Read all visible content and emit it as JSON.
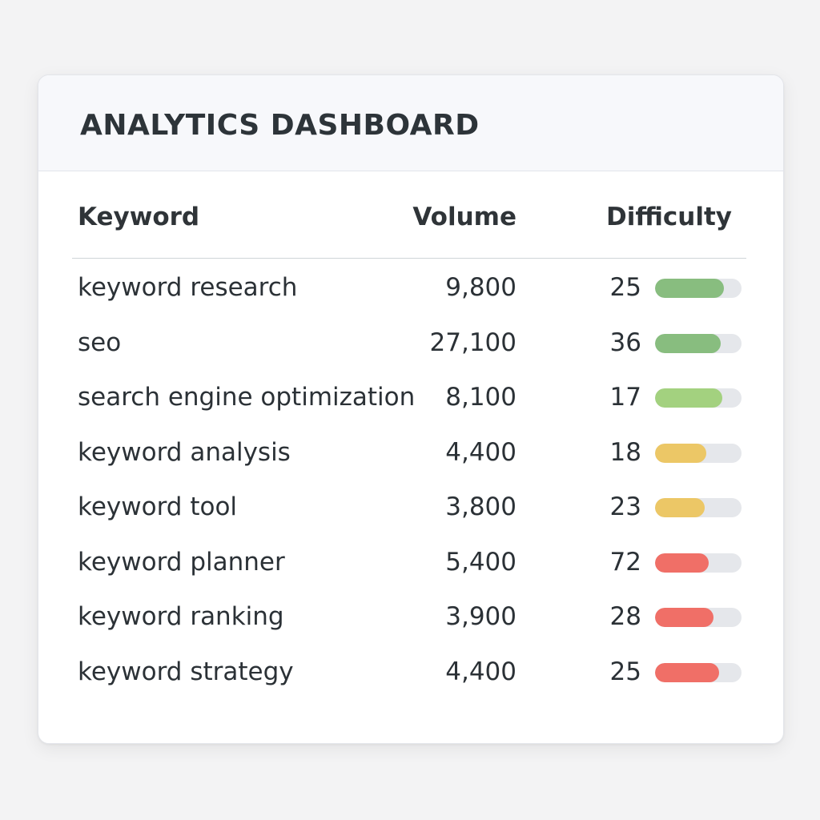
{
  "header": {
    "title": "ANALYTICS DASHBOARD"
  },
  "table": {
    "columns": {
      "keyword": "Keyword",
      "volume": "Volume",
      "difficulty": "Difficulty"
    },
    "rows": [
      {
        "keyword": "keyword research",
        "volume": "9,800",
        "difficulty": "25",
        "bar_level": 0.8,
        "bar_color": "#88bd7f"
      },
      {
        "keyword": "seo",
        "volume": "27,100",
        "difficulty": "36",
        "bar_level": 0.76,
        "bar_color": "#88bd7f"
      },
      {
        "keyword": "search engine optimization",
        "volume": "8,100",
        "difficulty": "17",
        "bar_level": 0.78,
        "bar_color": "#a3d17f"
      },
      {
        "keyword": "keyword analysis",
        "volume": "4,400",
        "difficulty": "18",
        "bar_level": 0.59,
        "bar_color": "#ecc766"
      },
      {
        "keyword": "keyword tool",
        "volume": "3,800",
        "difficulty": "23",
        "bar_level": 0.57,
        "bar_color": "#ecc766"
      },
      {
        "keyword": "keyword planner",
        "volume": "5,400",
        "difficulty": "72",
        "bar_level": 0.62,
        "bar_color": "#f06f67"
      },
      {
        "keyword": "keyword ranking",
        "volume": "3,900",
        "difficulty": "28",
        "bar_level": 0.68,
        "bar_color": "#f06f67"
      },
      {
        "keyword": "keyword strategy",
        "volume": "4,400",
        "difficulty": "25",
        "bar_level": 0.74,
        "bar_color": "#f06f67"
      }
    ]
  }
}
